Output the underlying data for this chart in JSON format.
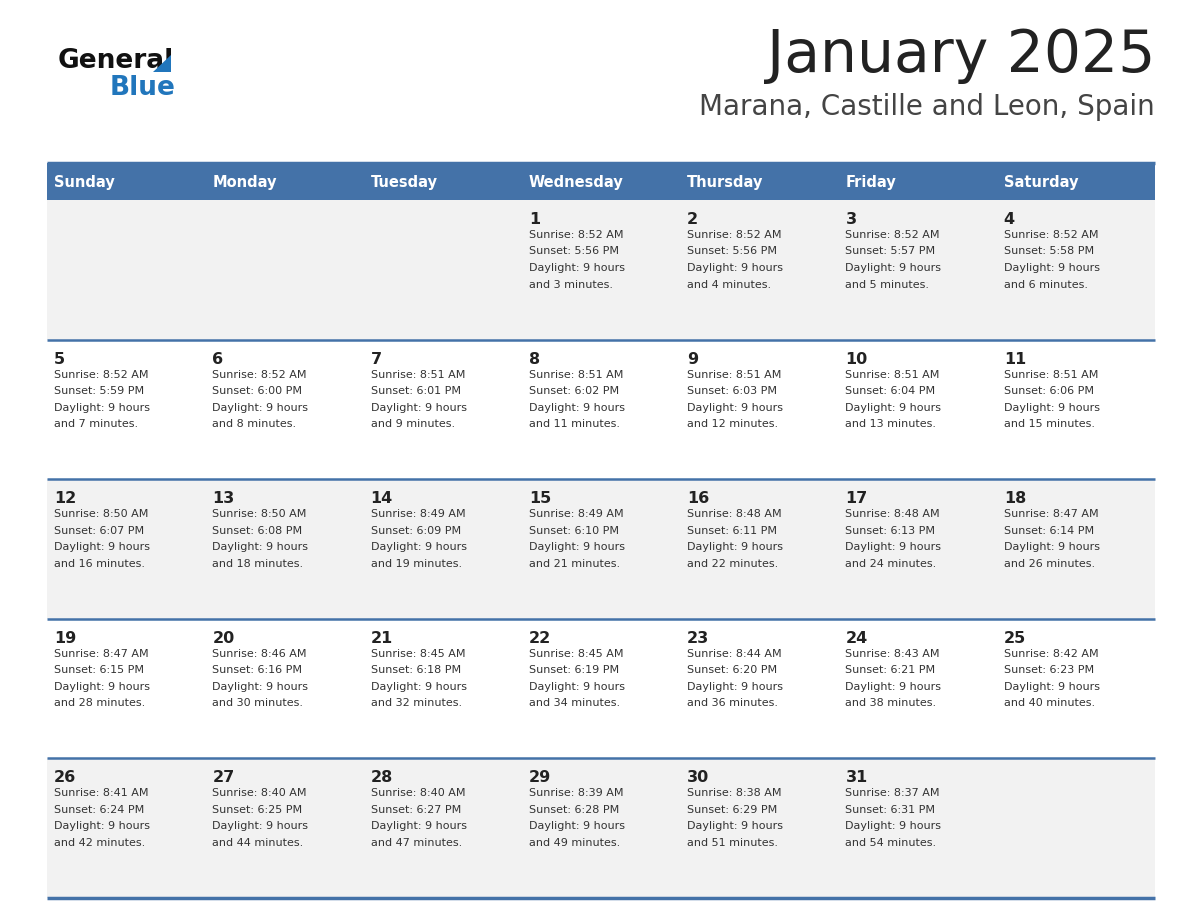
{
  "title": "January 2025",
  "subtitle": "Marana, Castille and Leon, Spain",
  "header_bg_color": "#4472A8",
  "header_text_color": "#FFFFFF",
  "day_names": [
    "Sunday",
    "Monday",
    "Tuesday",
    "Wednesday",
    "Thursday",
    "Friday",
    "Saturday"
  ],
  "row_colors": [
    "#F2F2F2",
    "#FFFFFF"
  ],
  "separator_color": "#4472A8",
  "day_num_color": "#222222",
  "detail_color": "#333333",
  "title_color": "#222222",
  "subtitle_color": "#444444",
  "logo_general_color": "#111111",
  "logo_blue_color": "#2176BC",
  "calendar_data": [
    [
      {
        "day": "",
        "sunrise": "",
        "sunset": "",
        "daylight": ""
      },
      {
        "day": "",
        "sunrise": "",
        "sunset": "",
        "daylight": ""
      },
      {
        "day": "",
        "sunrise": "",
        "sunset": "",
        "daylight": ""
      },
      {
        "day": "1",
        "sunrise": "8:52 AM",
        "sunset": "5:56 PM",
        "daylight": "9 hours and 3 minutes."
      },
      {
        "day": "2",
        "sunrise": "8:52 AM",
        "sunset": "5:56 PM",
        "daylight": "9 hours and 4 minutes."
      },
      {
        "day": "3",
        "sunrise": "8:52 AM",
        "sunset": "5:57 PM",
        "daylight": "9 hours and 5 minutes."
      },
      {
        "day": "4",
        "sunrise": "8:52 AM",
        "sunset": "5:58 PM",
        "daylight": "9 hours and 6 minutes."
      }
    ],
    [
      {
        "day": "5",
        "sunrise": "8:52 AM",
        "sunset": "5:59 PM",
        "daylight": "9 hours and 7 minutes."
      },
      {
        "day": "6",
        "sunrise": "8:52 AM",
        "sunset": "6:00 PM",
        "daylight": "9 hours and 8 minutes."
      },
      {
        "day": "7",
        "sunrise": "8:51 AM",
        "sunset": "6:01 PM",
        "daylight": "9 hours and 9 minutes."
      },
      {
        "day": "8",
        "sunrise": "8:51 AM",
        "sunset": "6:02 PM",
        "daylight": "9 hours and 11 minutes."
      },
      {
        "day": "9",
        "sunrise": "8:51 AM",
        "sunset": "6:03 PM",
        "daylight": "9 hours and 12 minutes."
      },
      {
        "day": "10",
        "sunrise": "8:51 AM",
        "sunset": "6:04 PM",
        "daylight": "9 hours and 13 minutes."
      },
      {
        "day": "11",
        "sunrise": "8:51 AM",
        "sunset": "6:06 PM",
        "daylight": "9 hours and 15 minutes."
      }
    ],
    [
      {
        "day": "12",
        "sunrise": "8:50 AM",
        "sunset": "6:07 PM",
        "daylight": "9 hours and 16 minutes."
      },
      {
        "day": "13",
        "sunrise": "8:50 AM",
        "sunset": "6:08 PM",
        "daylight": "9 hours and 18 minutes."
      },
      {
        "day": "14",
        "sunrise": "8:49 AM",
        "sunset": "6:09 PM",
        "daylight": "9 hours and 19 minutes."
      },
      {
        "day": "15",
        "sunrise": "8:49 AM",
        "sunset": "6:10 PM",
        "daylight": "9 hours and 21 minutes."
      },
      {
        "day": "16",
        "sunrise": "8:48 AM",
        "sunset": "6:11 PM",
        "daylight": "9 hours and 22 minutes."
      },
      {
        "day": "17",
        "sunrise": "8:48 AM",
        "sunset": "6:13 PM",
        "daylight": "9 hours and 24 minutes."
      },
      {
        "day": "18",
        "sunrise": "8:47 AM",
        "sunset": "6:14 PM",
        "daylight": "9 hours and 26 minutes."
      }
    ],
    [
      {
        "day": "19",
        "sunrise": "8:47 AM",
        "sunset": "6:15 PM",
        "daylight": "9 hours and 28 minutes."
      },
      {
        "day": "20",
        "sunrise": "8:46 AM",
        "sunset": "6:16 PM",
        "daylight": "9 hours and 30 minutes."
      },
      {
        "day": "21",
        "sunrise": "8:45 AM",
        "sunset": "6:18 PM",
        "daylight": "9 hours and 32 minutes."
      },
      {
        "day": "22",
        "sunrise": "8:45 AM",
        "sunset": "6:19 PM",
        "daylight": "9 hours and 34 minutes."
      },
      {
        "day": "23",
        "sunrise": "8:44 AM",
        "sunset": "6:20 PM",
        "daylight": "9 hours and 36 minutes."
      },
      {
        "day": "24",
        "sunrise": "8:43 AM",
        "sunset": "6:21 PM",
        "daylight": "9 hours and 38 minutes."
      },
      {
        "day": "25",
        "sunrise": "8:42 AM",
        "sunset": "6:23 PM",
        "daylight": "9 hours and 40 minutes."
      }
    ],
    [
      {
        "day": "26",
        "sunrise": "8:41 AM",
        "sunset": "6:24 PM",
        "daylight": "9 hours and 42 minutes."
      },
      {
        "day": "27",
        "sunrise": "8:40 AM",
        "sunset": "6:25 PM",
        "daylight": "9 hours and 44 minutes."
      },
      {
        "day": "28",
        "sunrise": "8:40 AM",
        "sunset": "6:27 PM",
        "daylight": "9 hours and 47 minutes."
      },
      {
        "day": "29",
        "sunrise": "8:39 AM",
        "sunset": "6:28 PM",
        "daylight": "9 hours and 49 minutes."
      },
      {
        "day": "30",
        "sunrise": "8:38 AM",
        "sunset": "6:29 PM",
        "daylight": "9 hours and 51 minutes."
      },
      {
        "day": "31",
        "sunrise": "8:37 AM",
        "sunset": "6:31 PM",
        "daylight": "9 hours and 54 minutes."
      },
      {
        "day": "",
        "sunrise": "",
        "sunset": "",
        "daylight": ""
      }
    ]
  ]
}
